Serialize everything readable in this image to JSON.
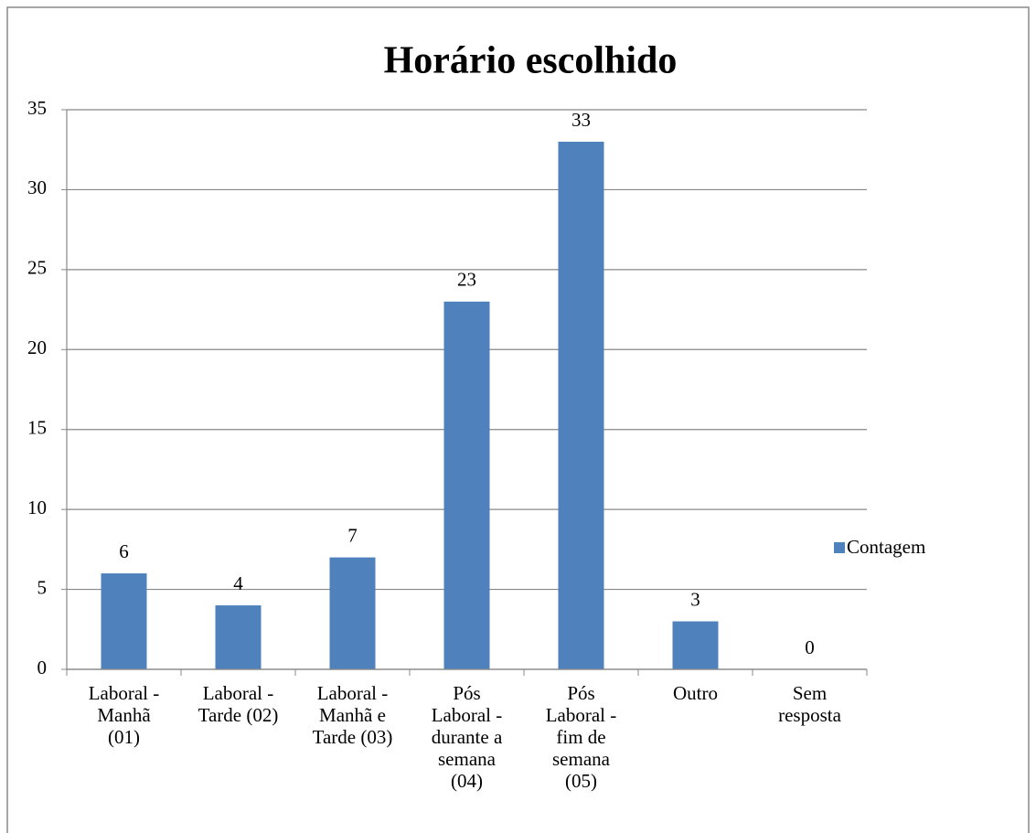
{
  "chart_data": {
    "type": "bar",
    "title": "Horário escolhido",
    "categories": [
      "Laboral - Manhã (01)",
      "Laboral - Tarde (02)",
      "Laboral - Manhã e Tarde (03)",
      "Pós Laboral - durante a semana (04)",
      "Pós Laboral - fim de semana (05)",
      "Outro",
      "Sem resposta"
    ],
    "series": [
      {
        "name": "Contagem",
        "color": "#4f81bd",
        "values": [
          6,
          4,
          7,
          23,
          33,
          3,
          0
        ]
      }
    ],
    "ylim": [
      0,
      35
    ],
    "yticks": [
      0,
      5,
      10,
      15,
      20,
      25,
      30,
      35
    ],
    "grid": true,
    "legend": "right"
  }
}
